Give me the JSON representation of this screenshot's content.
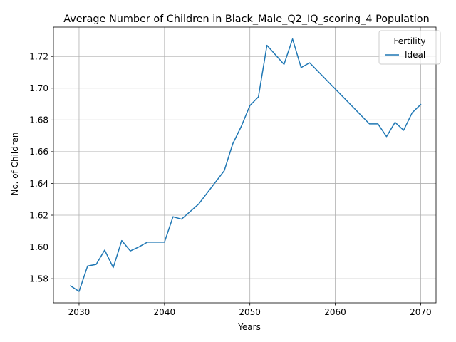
{
  "chart_data": {
    "type": "line",
    "title": "Average Number of Children in Black_Male_Q2_IQ_scoring_4 Population",
    "xlabel": "Years",
    "ylabel": "No. of Children",
    "xlim": [
      2027,
      2071.8
    ],
    "ylim": [
      1.5648,
      1.7385
    ],
    "xticks": [
      2030,
      2040,
      2050,
      2060,
      2070
    ],
    "yticks": [
      1.58,
      1.6,
      1.62,
      1.64,
      1.66,
      1.68,
      1.7,
      1.72
    ],
    "ytick_labels": [
      "1.58",
      "1.60",
      "1.62",
      "1.64",
      "1.66",
      "1.68",
      "1.70",
      "1.72"
    ],
    "grid": true,
    "legend": {
      "title": "Fertility",
      "placement": "top-right"
    },
    "series": [
      {
        "name": "Ideal",
        "color": "#1f77b4",
        "x": [
          2029,
          2030,
          2031,
          2032,
          2033,
          2034,
          2035,
          2036,
          2037,
          2038,
          2039,
          2040,
          2041,
          2042,
          2044,
          2047,
          2048,
          2049,
          2050,
          2051,
          2052,
          2054,
          2055,
          2056,
          2057,
          2064,
          2065,
          2066,
          2067,
          2068,
          2069,
          2070
        ],
        "y": [
          1.5755,
          1.572,
          1.588,
          1.589,
          1.598,
          1.587,
          1.604,
          1.5975,
          1.6,
          1.603,
          1.603,
          1.603,
          1.619,
          1.6175,
          1.627,
          1.648,
          1.665,
          1.676,
          1.689,
          1.6945,
          1.727,
          1.715,
          1.731,
          1.713,
          1.716,
          1.6775,
          1.6775,
          1.6695,
          1.6785,
          1.6735,
          1.6845,
          1.6897
        ]
      }
    ]
  }
}
